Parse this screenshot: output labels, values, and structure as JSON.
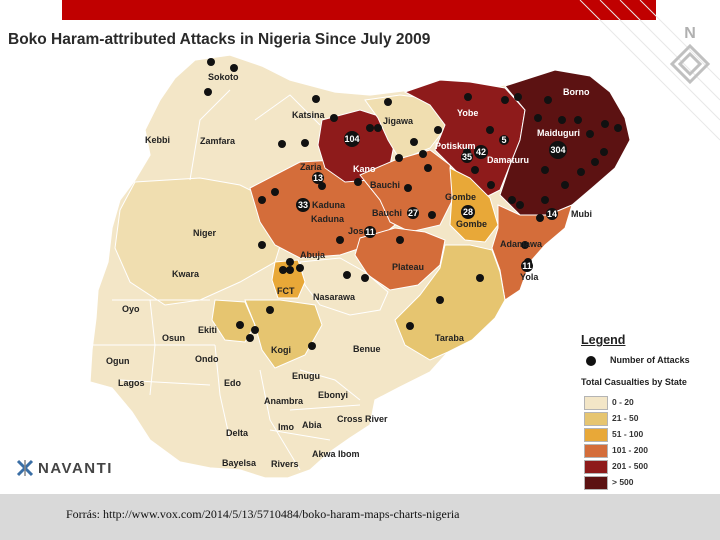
{
  "title": "Boko Haram-attributed Attacks in Nigeria Since July 2009",
  "source": "Forrás: http://www.vox.com/2014/5/13/5710484/boko-haram-maps-charts-nigeria",
  "brand": "NAVANTI",
  "corner_logo_letter": "N",
  "colors": {
    "band": "#c00000",
    "footer": "#d9d9d9",
    "tier_0_20": "#f3e6c7",
    "tier_21_50": "#e6c570",
    "tier_51_100": "#e8a838",
    "tier_101_200": "#d46d3a",
    "tier_201_500": "#8e1b1b",
    "tier_over_500": "#5c1212"
  },
  "legend": {
    "title": "Legend",
    "attacks_label": "Number of Attacks",
    "casualties_title": "Total Casualties by State",
    "tiers": [
      {
        "label": "0 - 20",
        "color": "#f3e6c7"
      },
      {
        "label": "21 - 50",
        "color": "#e6c570"
      },
      {
        "label": "51 - 100",
        "color": "#e8a838"
      },
      {
        "label": "101 - 200",
        "color": "#d46d3a"
      },
      {
        "label": "201 - 500",
        "color": "#8e1b1b"
      },
      {
        "label": "> 500",
        "color": "#5c1212"
      }
    ]
  },
  "states": {
    "sokoto": "Sokoto",
    "kebbi": "Kebbi",
    "zamfara": "Zamfara",
    "katsina": "Katsina",
    "jigawa": "Jigawa",
    "kano": "Kano",
    "yobe": "Yobe",
    "borno": "Borno",
    "zaria": "Zaria",
    "kaduna": "Kaduna",
    "bauchi": "Bauchi",
    "gombe": "Gombe",
    "niger": "Niger",
    "jos": "Jos",
    "plateau": "Plateau",
    "adamawa": "Adamawa",
    "kwara": "Kwara",
    "abuja": "Abuja",
    "fct": "FCT",
    "nasarawa": "Nasarawa",
    "taraba": "Taraba",
    "oyo": "Oyo",
    "ekiti": "Ekiti",
    "osun": "Osun",
    "kogi": "Kogi",
    "benue": "Benue",
    "ogun": "Ogun",
    "ondo": "Ondo",
    "lagos": "Lagos",
    "edo": "Edo",
    "enugu": "Enugu",
    "ebonyi": "Ebonyi",
    "anambra": "Anambra",
    "imo": "Imo",
    "abia": "Abia",
    "cross_river": "Cross River",
    "delta": "Delta",
    "akwa_ibom": "Akwa Ibom",
    "bayelsa": "Bayelsa",
    "rivers": "Rivers",
    "maiduguri": "Maiduguri",
    "potiskum": "Potiskum",
    "damaturu": "Damaturu",
    "mubi": "Mubi",
    "yola": "Yola"
  },
  "attack_counts": {
    "kano": "104",
    "borno_maiduguri": "304",
    "yobe_a": "42",
    "yobe_b": "35",
    "zaria": "13",
    "kaduna": "33",
    "gombe": "28",
    "bauchi": "27",
    "jos": "11",
    "mubi": "14",
    "yola": "11",
    "potiskum": "5"
  }
}
